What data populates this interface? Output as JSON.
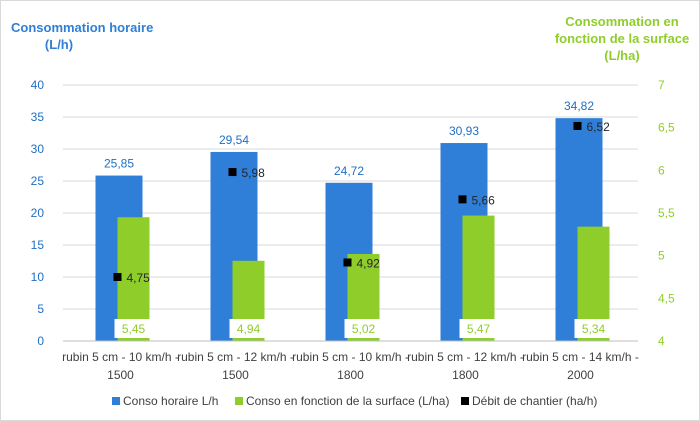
{
  "chart_data": {
    "type": "bar",
    "left_axis_title": "Consommation horaire (L/h)",
    "right_axis_title": "Consommation en fonction de la surface (L/ha)",
    "left_axis_title_lines": [
      "Consommation horaire",
      "(L/h)"
    ],
    "right_axis_title_lines": [
      "Consommation en",
      "fonction de la surface",
      "(L/ha)"
    ],
    "categories": [
      "rubin 5 cm - 10 km/h - 1500",
      "rubin 5 cm - 12 km/h - 1500",
      "rubin 5 cm - 10 km/h - 1800",
      "rubin 5 cm - 12 km/h - 1800",
      "rubin 5 cm - 14 km/h - 2000"
    ],
    "category_lines": [
      [
        "rubin 5 cm - 10 km/h -",
        "1500"
      ],
      [
        "rubin 5 cm - 12 km/h -",
        "1500"
      ],
      [
        "rubin 5 cm - 10 km/h -",
        "1800"
      ],
      [
        "rubin 5 cm - 12 km/h -",
        "1800"
      ],
      [
        "rubin 5 cm - 14 km/h -",
        "2000"
      ]
    ],
    "left_ylim": [
      0,
      40
    ],
    "left_ticks": [
      "0",
      "5",
      "10",
      "15",
      "20",
      "25",
      "30",
      "35",
      "40"
    ],
    "right_ylim": [
      4,
      7
    ],
    "right_ticks": [
      "4",
      "4,5",
      "5",
      "5,5",
      "6",
      "6,5",
      "7"
    ],
    "series": [
      {
        "name": "Conso horaire L/h",
        "kind": "bar",
        "axis": "left",
        "color": "#2f7ed8",
        "values": [
          25.85,
          29.54,
          24.72,
          30.93,
          34.82
        ],
        "labels": [
          "25,85",
          "29,54",
          "24,72",
          "30,93",
          "34,82"
        ]
      },
      {
        "name": "Conso en fonction de la surface (L/ha)",
        "kind": "bar",
        "axis": "right",
        "color": "#8fce2a",
        "values": [
          5.45,
          4.94,
          5.02,
          5.47,
          5.34
        ],
        "labels": [
          "5,45",
          "4,94",
          "5,02",
          "5,47",
          "5,34"
        ]
      },
      {
        "name": "Débit de chantier (ha/h)",
        "kind": "scatter",
        "axis": "right",
        "color": "#000000",
        "values": [
          4.75,
          5.98,
          4.92,
          5.66,
          6.52
        ],
        "labels": [
          "4,75",
          "5,98",
          "4,92",
          "5,66",
          "6,52"
        ]
      }
    ],
    "grid": true,
    "legend": "bottom"
  }
}
